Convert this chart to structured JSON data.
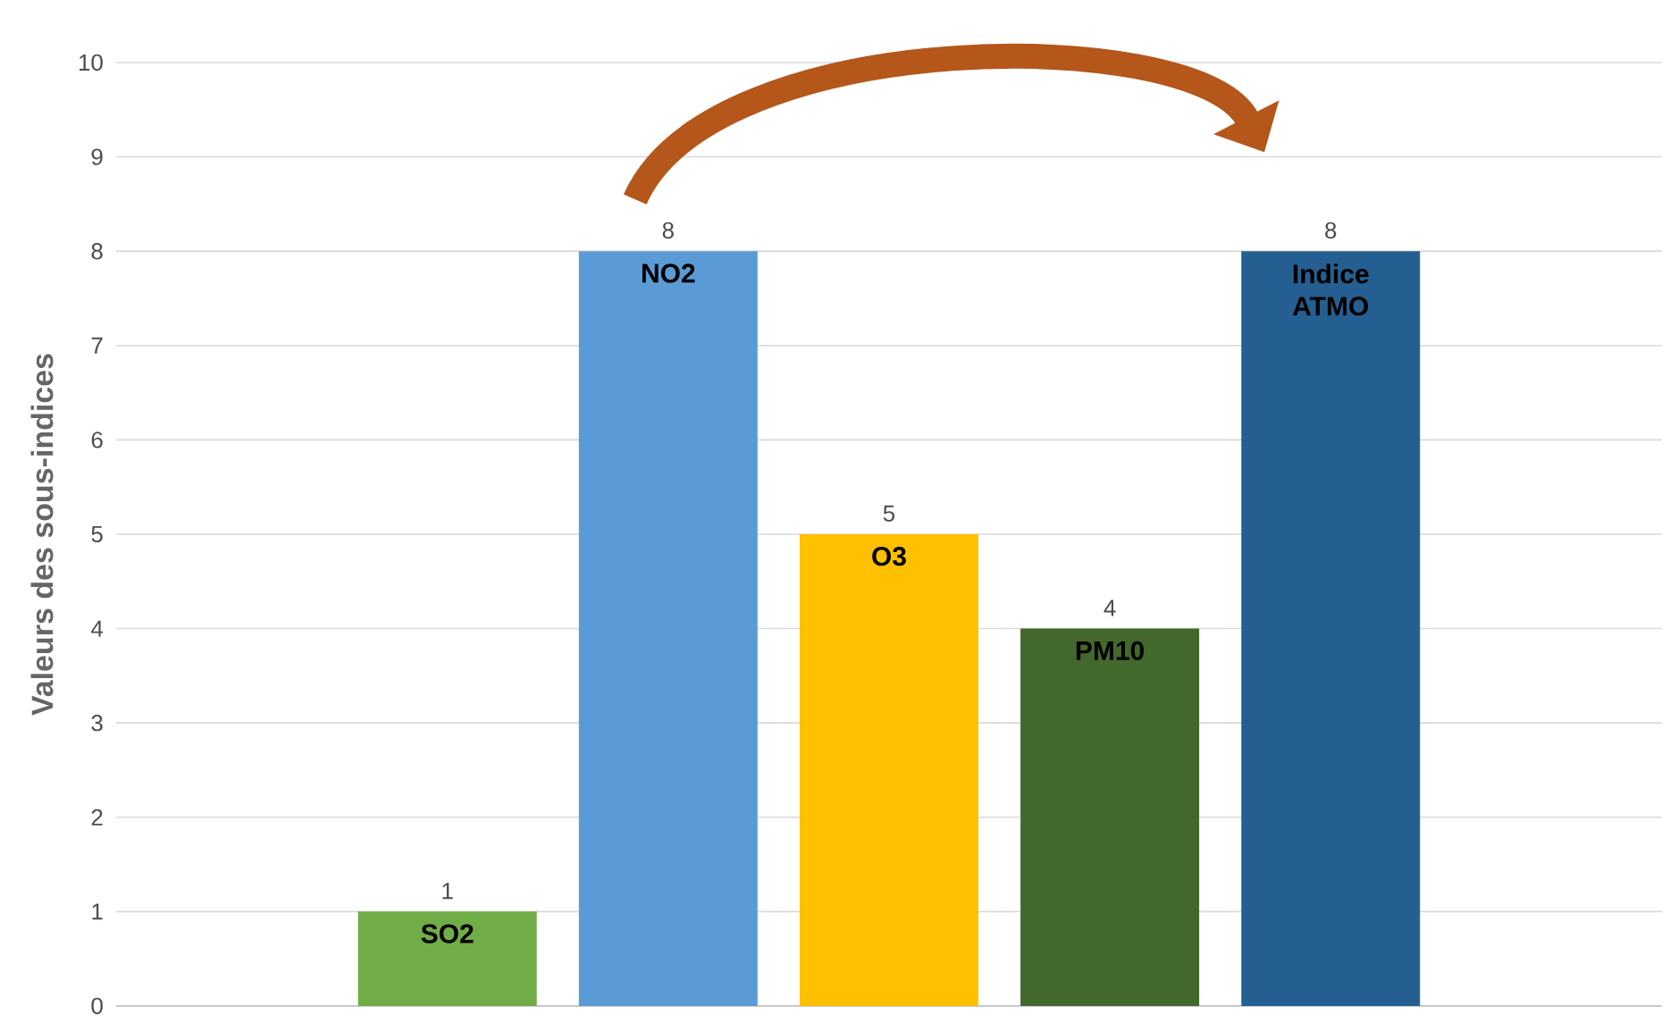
{
  "chart_data": {
    "type": "bar",
    "ylabel": "Valeurs des sous-indices",
    "categories": [
      null,
      "SO2",
      "NO2",
      "O3",
      "PM10",
      "Indice ATMO",
      null
    ],
    "values": [
      null,
      1,
      8,
      5,
      4,
      8,
      null
    ],
    "colors": [
      null,
      "#70ad47",
      "#5b9bd5",
      "#ffc000",
      "#43682b",
      "#255e91",
      null
    ],
    "ylim": [
      0,
      10
    ],
    "yticks": [
      0,
      1,
      2,
      3,
      4,
      5,
      6,
      7,
      8,
      9,
      10
    ],
    "grid": "y",
    "data_labels": true
  }
}
